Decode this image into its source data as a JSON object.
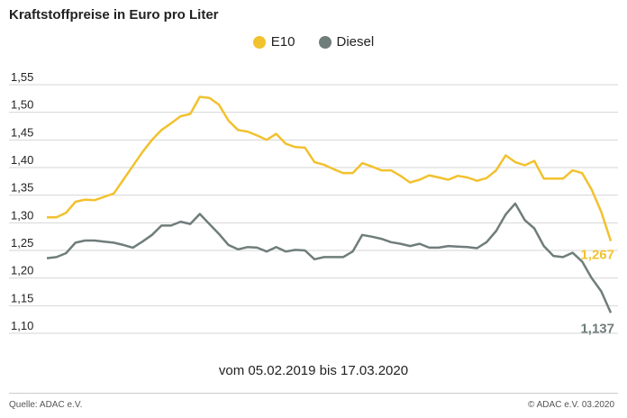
{
  "title": "Kraftstoffpreise in Euro pro Liter",
  "period": "vom 05.02.2019 bis 17.03.2020",
  "source": "Quelle: ADAC e.V.",
  "copyright": "© ADAC e.V.  03.2020",
  "colors": {
    "e10": "#f2c12e",
    "diesel": "#6f7d7b"
  },
  "chart_data": {
    "type": "line",
    "title": "Kraftstoffpreise in Euro pro Liter",
    "xlabel": "vom 05.02.2019 bis 17.03.2020",
    "ylabel": "",
    "ylim": [
      1.1,
      1.55
    ],
    "yticks": [
      "1,55",
      "1,50",
      "1,45",
      "1,40",
      "1,35",
      "1,30",
      "1,25",
      "1,20",
      "1,15",
      "1,10"
    ],
    "ytick_values": [
      1.55,
      1.5,
      1.45,
      1.4,
      1.35,
      1.3,
      1.25,
      1.2,
      1.15,
      1.1
    ],
    "grid": true,
    "legend": "top-center",
    "end_labels": {
      "e10": "1,267",
      "diesel": "1,137"
    },
    "series": [
      {
        "name": "E10",
        "values": [
          1.31,
          1.31,
          1.318,
          1.338,
          1.342,
          1.341,
          1.347,
          1.353,
          1.378,
          1.403,
          1.428,
          1.45,
          1.468,
          1.48,
          1.493,
          1.497,
          1.528,
          1.526,
          1.514,
          1.485,
          1.468,
          1.465,
          1.458,
          1.45,
          1.461,
          1.443,
          1.437,
          1.436,
          1.41,
          1.405,
          1.397,
          1.39,
          1.39,
          1.408,
          1.402,
          1.395,
          1.395,
          1.385,
          1.373,
          1.378,
          1.386,
          1.382,
          1.378,
          1.385,
          1.382,
          1.376,
          1.381,
          1.395,
          1.422,
          1.41,
          1.404,
          1.412,
          1.38,
          1.38,
          1.38,
          1.395,
          1.39,
          1.36,
          1.32,
          1.267
        ]
      },
      {
        "name": "Diesel",
        "values": [
          1.236,
          1.238,
          1.245,
          1.264,
          1.268,
          1.268,
          1.266,
          1.264,
          1.26,
          1.255,
          1.266,
          1.278,
          1.295,
          1.295,
          1.302,
          1.298,
          1.316,
          1.298,
          1.28,
          1.26,
          1.252,
          1.256,
          1.255,
          1.248,
          1.256,
          1.248,
          1.251,
          1.25,
          1.234,
          1.238,
          1.238,
          1.238,
          1.248,
          1.278,
          1.275,
          1.271,
          1.265,
          1.262,
          1.258,
          1.262,
          1.255,
          1.255,
          1.258,
          1.257,
          1.256,
          1.254,
          1.265,
          1.285,
          1.315,
          1.335,
          1.305,
          1.29,
          1.258,
          1.24,
          1.238,
          1.246,
          1.23,
          1.2,
          1.176,
          1.137
        ]
      }
    ]
  }
}
